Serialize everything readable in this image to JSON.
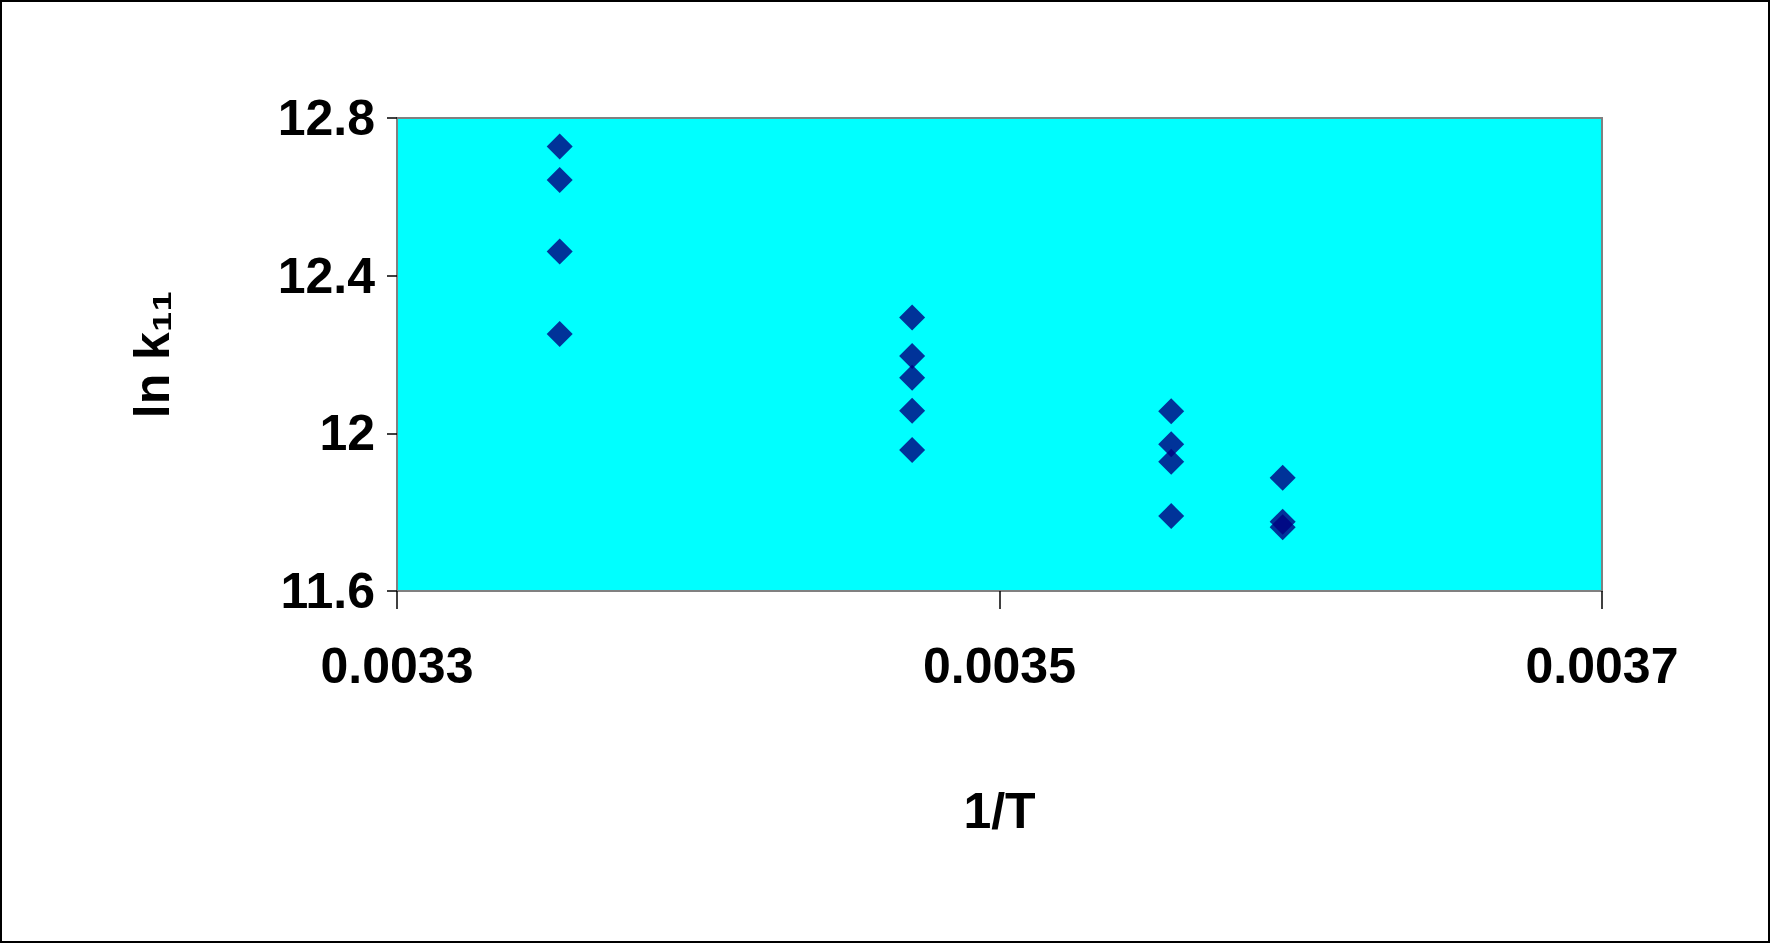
{
  "chart_data": {
    "type": "scatter",
    "xlabel": "1/T",
    "ylabel": "ln k₁₁",
    "x": [
      0.003354,
      0.003354,
      0.003354,
      0.003354,
      0.003471,
      0.003471,
      0.003471,
      0.003471,
      0.003471,
      0.003557,
      0.003557,
      0.003557,
      0.003557,
      0.003594,
      0.003594,
      0.003594
    ],
    "series": [
      {
        "color": "#000080",
        "values": [
          12.728,
          12.643,
          12.461,
          12.252,
          12.294,
          12.196,
          12.141,
          12.057,
          11.958,
          12.056,
          11.972,
          11.928,
          11.79,
          11.887,
          11.776,
          11.762
        ]
      }
    ],
    "xlim": [
      0.0033,
      0.0037
    ],
    "xticks": [
      0.0033,
      0.0035,
      0.0037
    ],
    "ylim": [
      11.6,
      12.8
    ],
    "yticks": [
      11.6,
      12,
      12.4,
      12.8
    ],
    "grid": false,
    "marker": "diamond"
  }
}
